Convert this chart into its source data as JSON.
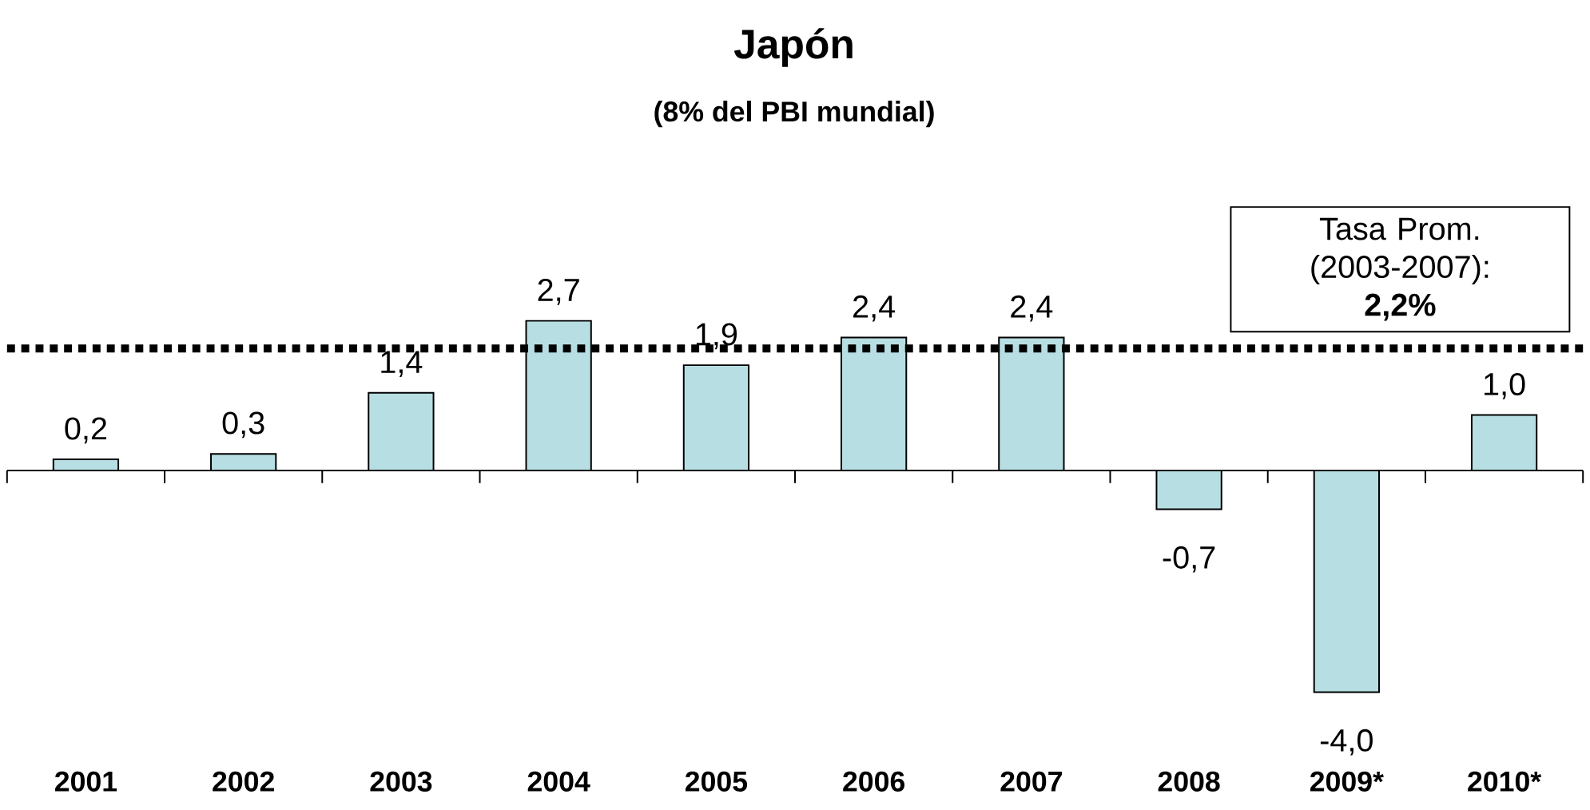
{
  "chart_data": {
    "type": "bar",
    "title": "Japón",
    "subtitle": "(8% del PBI mundial)",
    "categories": [
      "2001",
      "2002",
      "2003",
      "2004",
      "2005",
      "2006",
      "2007",
      "2008",
      "2009*",
      "2010*"
    ],
    "values": [
      0.2,
      0.3,
      1.4,
      2.7,
      1.9,
      2.4,
      2.4,
      -0.7,
      -4.0,
      1.0
    ],
    "value_labels": [
      "0,2",
      "0,3",
      "1,4",
      "2,7",
      "1,9",
      "2,4",
      "2,4",
      "-0,7",
      "-4,0",
      "1,0"
    ],
    "color": "#b7dfe3",
    "ref_lines": [
      {
        "axis": "y",
        "value": 2.2,
        "label": "Tasa Prom. (2003-2007): **2,2%**",
        "color": "#000000",
        "line_style": "dotted"
      }
    ]
  }
}
